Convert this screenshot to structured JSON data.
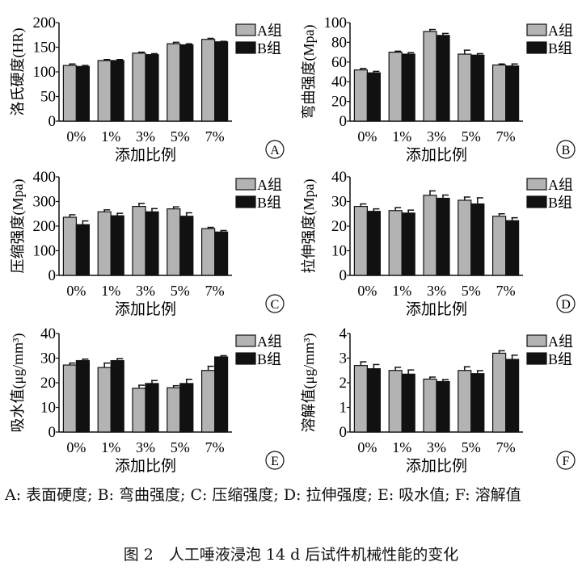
{
  "chart_data": [
    {
      "type": "bar",
      "panel": "A",
      "ylabel": "洛氏硬度(HR)",
      "xlabel": "添加比例",
      "categories": [
        "0%",
        "1%",
        "3%",
        "5%",
        "7%"
      ],
      "ylim": [
        0,
        200
      ],
      "yticks": [
        0,
        50,
        100,
        150,
        200
      ],
      "series": [
        {
          "name": "A组",
          "color": "#b3b3b3",
          "values": [
            113,
            123,
            138,
            157,
            166
          ],
          "errors": [
            3,
            2,
            2,
            3,
            2
          ]
        },
        {
          "name": "B组",
          "color": "#111111",
          "values": [
            111,
            123,
            135,
            155,
            161
          ],
          "errors": [
            2,
            2,
            2,
            2,
            1
          ]
        }
      ],
      "legend": "top-right"
    },
    {
      "type": "bar",
      "panel": "B",
      "ylabel": "弯曲强度(Mpa)",
      "xlabel": "添加比例",
      "categories": [
        "0%",
        "1%",
        "3%",
        "5%",
        "7%"
      ],
      "ylim": [
        0,
        100
      ],
      "yticks": [
        0,
        20,
        40,
        60,
        80,
        100
      ],
      "series": [
        {
          "name": "A组",
          "color": "#b3b3b3",
          "values": [
            52,
            70,
            91,
            68,
            57
          ],
          "errors": [
            1.5,
            1,
            2,
            4,
            1
          ]
        },
        {
          "name": "B组",
          "color": "#111111",
          "values": [
            49,
            68,
            87,
            67,
            56
          ],
          "errors": [
            1.5,
            1.5,
            2,
            1.5,
            2
          ]
        }
      ],
      "legend": "top-right"
    },
    {
      "type": "bar",
      "panel": "C",
      "ylabel": "压缩强度(Mpa)",
      "xlabel": "添加比例",
      "categories": [
        "0%",
        "1%",
        "3%",
        "5%",
        "7%"
      ],
      "ylim": [
        0,
        400
      ],
      "yticks": [
        0,
        100,
        200,
        300,
        400
      ],
      "series": [
        {
          "name": "A组",
          "color": "#b3b3b3",
          "values": [
            236,
            258,
            280,
            270,
            190
          ],
          "errors": [
            10,
            8,
            12,
            8,
            5
          ]
        },
        {
          "name": "B组",
          "color": "#111111",
          "values": [
            206,
            242,
            258,
            240,
            176
          ],
          "errors": [
            15,
            10,
            13,
            14,
            6
          ]
        }
      ],
      "legend": "top-right"
    },
    {
      "type": "bar",
      "panel": "D",
      "ylabel": "拉伸强度(Mpa)",
      "xlabel": "添加比例",
      "categories": [
        "0%",
        "1%",
        "3%",
        "5%",
        "7%"
      ],
      "ylim": [
        0,
        40
      ],
      "yticks": [
        0,
        10,
        20,
        30,
        40
      ],
      "series": [
        {
          "name": "A组",
          "color": "#b3b3b3",
          "values": [
            28,
            26.3,
            32.5,
            30.5,
            24
          ],
          "errors": [
            1,
            1.2,
            1.8,
            1.3,
            1
          ]
        },
        {
          "name": "B组",
          "color": "#111111",
          "values": [
            26,
            25.3,
            31.3,
            29,
            22.2
          ],
          "errors": [
            1,
            1.2,
            1.3,
            2.5,
            1.2
          ]
        }
      ],
      "legend": "top-right"
    },
    {
      "type": "bar",
      "panel": "E",
      "ylabel": "吸水值(μg/mm³)",
      "xlabel": "添加比例",
      "categories": [
        "0%",
        "1%",
        "3%",
        "5%",
        "7%"
      ],
      "ylim": [
        0,
        40
      ],
      "yticks": [
        0,
        10,
        20,
        30,
        40
      ],
      "series": [
        {
          "name": "A组",
          "color": "#b3b3b3",
          "values": [
            27.2,
            26.2,
            17.8,
            18,
            25
          ],
          "errors": [
            0.8,
            1.8,
            1.2,
            0.8,
            1.7
          ]
        },
        {
          "name": "B组",
          "color": "#111111",
          "values": [
            29,
            29,
            19.7,
            19.7,
            30.5
          ],
          "errors": [
            0.6,
            0.8,
            1.2,
            1.7,
            0.5
          ]
        }
      ],
      "legend": "top-right"
    },
    {
      "type": "bar",
      "panel": "F",
      "ylabel": "溶解值(μg/mm³)",
      "xlabel": "添加比例",
      "categories": [
        "0%",
        "1%",
        "3%",
        "5%",
        "7%"
      ],
      "ylim": [
        0,
        4
      ],
      "yticks": [
        0,
        1,
        2,
        3,
        4
      ],
      "series": [
        {
          "name": "A组",
          "color": "#b3b3b3",
          "values": [
            2.7,
            2.5,
            2.15,
            2.5,
            3.2
          ],
          "errors": [
            0.15,
            0.13,
            0.08,
            0.15,
            0.1
          ]
        },
        {
          "name": "B组",
          "color": "#111111",
          "values": [
            2.57,
            2.35,
            2.05,
            2.37,
            2.95
          ],
          "errors": [
            0.17,
            0.17,
            0.08,
            0.12,
            0.17
          ]
        }
      ],
      "legend": "top-right"
    }
  ],
  "caption": "A: 表面硬度; B: 弯曲强度; C: 压缩强度; D: 拉伸强度; E: 吸水值; F: 溶解值",
  "figure_title": "图 2　人工唾液浸泡 14 d 后试件机械性能的变化"
}
